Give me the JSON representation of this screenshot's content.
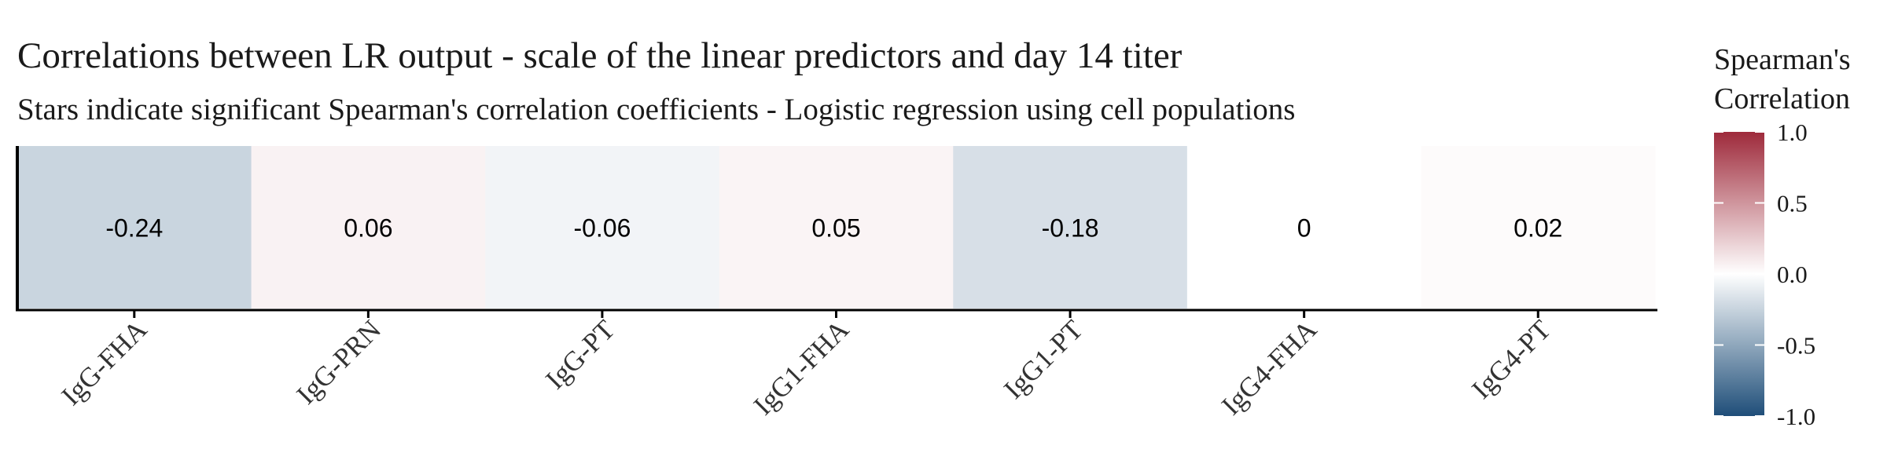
{
  "chart_data": {
    "type": "heatmap",
    "title": "Correlations between LR output - scale of the linear predictors and day 14 titer",
    "subtitle": "Stars indicate significant Spearman's correlation coefficients - Logistic regression using cell populations",
    "categories": [
      "IgG-FHA",
      "IgG-PRN",
      "IgG-PT",
      "IgG1-FHA",
      "IgG1-PT",
      "IgG4-FHA",
      "IgG4-PT"
    ],
    "values": [
      -0.24,
      0.06,
      -0.06,
      0.05,
      -0.18,
      0,
      0.02
    ],
    "value_labels": [
      "-0.24",
      "0.06",
      "-0.06",
      "0.05",
      "-0.18",
      "0",
      "0.02"
    ],
    "legend": {
      "title_line1": "Spearman's",
      "title_line2": "Correlation",
      "limits": [
        -1,
        1
      ],
      "tick_values": [
        1.0,
        0.5,
        0.0,
        -0.5,
        -1.0
      ],
      "tick_labels": [
        "1.0",
        "0.5",
        "0.0",
        "-0.5",
        "-1.0"
      ],
      "placement": "right"
    },
    "colors": {
      "low": "#1f4e79",
      "mid": "#ffffff",
      "high": "#9e2a3b",
      "axis": "#000000",
      "text": "#1a1a1a"
    }
  }
}
